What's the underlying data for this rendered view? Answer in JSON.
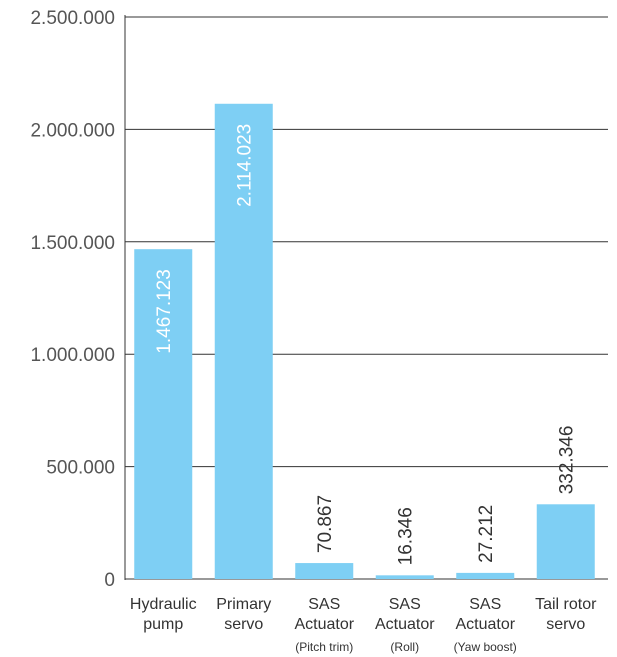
{
  "chart_data": {
    "type": "bar",
    "categories": [
      {
        "lines": [
          "Hydraulic",
          "pump"
        ],
        "sub": ""
      },
      {
        "lines": [
          "Primary",
          "servo"
        ],
        "sub": ""
      },
      {
        "lines": [
          "SAS",
          "Actuator"
        ],
        "sub": "(Pitch trim)"
      },
      {
        "lines": [
          "SAS",
          "Actuator"
        ],
        "sub": "(Roll)"
      },
      {
        "lines": [
          "SAS",
          "Actuator"
        ],
        "sub": "(Yaw boost)"
      },
      {
        "lines": [
          "Tail rotor",
          "servo"
        ],
        "sub": ""
      }
    ],
    "values": [
      1467123,
      2114023,
      70867,
      16346,
      27212,
      332346
    ],
    "value_labels": [
      "1.467.123",
      "2.114.023",
      "70.867",
      "16.346",
      "27.212",
      "332.346"
    ],
    "yticks": [
      0,
      500000,
      1000000,
      1500000,
      2000000,
      2500000
    ],
    "ytick_labels": [
      "0",
      "500.000",
      "1.000.000",
      "1.500.000",
      "2.000.000",
      "2.500.000"
    ],
    "ylim": [
      0,
      2500000
    ],
    "grid": true,
    "bar_color": "#7ecff4",
    "label_inside_color": "#ffffff",
    "label_outside_color": "#333333",
    "axis_color": "#333333"
  }
}
